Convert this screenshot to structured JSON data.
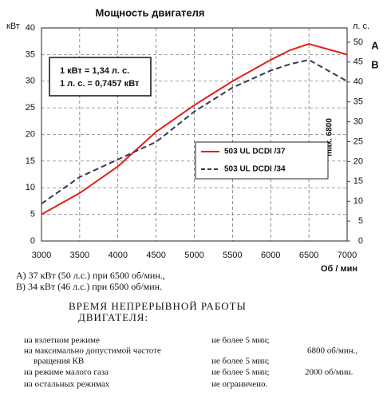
{
  "chart_data": {
    "type": "line",
    "title": "Мощность двигателя",
    "title_color": "#2e7d32",
    "y_label": "кВт",
    "y2_label": "л. с.",
    "x_label": "Об / мин",
    "x": [
      3000,
      3500,
      4000,
      4500,
      5000,
      5500,
      6000,
      6250,
      6500,
      7000
    ],
    "series": [
      {
        "name": "503 UL DCDI /37",
        "marker": "A",
        "color": "#e0201b",
        "dash": false,
        "values": [
          5,
          9,
          14,
          20.5,
          25.5,
          30,
          34,
          35.8,
          37,
          35
        ]
      },
      {
        "name": "503 UL DCDI /34",
        "marker": "B",
        "color": "#333a55",
        "dash": true,
        "values": [
          7,
          12,
          15.3,
          18.6,
          24.3,
          28.8,
          32,
          33.2,
          34,
          30
        ]
      }
    ],
    "xlim": [
      3000,
      7000
    ],
    "xticks": [
      3000,
      3500,
      4000,
      4500,
      5000,
      5500,
      6000,
      6500,
      7000
    ],
    "ylim": [
      0,
      40
    ],
    "yticks": [
      0,
      5,
      10,
      15,
      20,
      25,
      30,
      35,
      40
    ],
    "y2lim": [
      0,
      53.6
    ],
    "y2ticks": [
      0,
      5,
      10,
      15,
      20,
      25,
      30,
      35,
      40,
      45,
      50
    ],
    "grid": true,
    "conversion": [
      "1 кВт = 1,34 л. с.",
      "1 л. с. = 0,7457 кВт"
    ],
    "annotation": "max. 6800"
  },
  "notes": [
    "A) 37 кВт (50 л.с.) при 6500 об/мин.,",
    "B) 34 кВт (46 л.с.) при 6500 об/мин."
  ],
  "table": {
    "title": [
      "ВРЕМЯ НЕПРЕРЫВНОЙ РАБОТЫ",
      "ДВИГАТЕЛЯ:"
    ],
    "rows": [
      {
        "label": "на взлетном режиме",
        "limit": "не более 5 мин;"
      },
      {
        "label": "на максимально допустимой частоте",
        "rpm": "6800 об/мин.,"
      },
      {
        "label": "вращения КВ",
        "limit": "не более 5 мин;"
      },
      {
        "label": "на режиме малого газа",
        "limit": "не более 5 мин;",
        "rpm": "2000 об/мин."
      },
      {
        "label": "на остальных режимах",
        "limit": "не ограничено."
      }
    ]
  }
}
